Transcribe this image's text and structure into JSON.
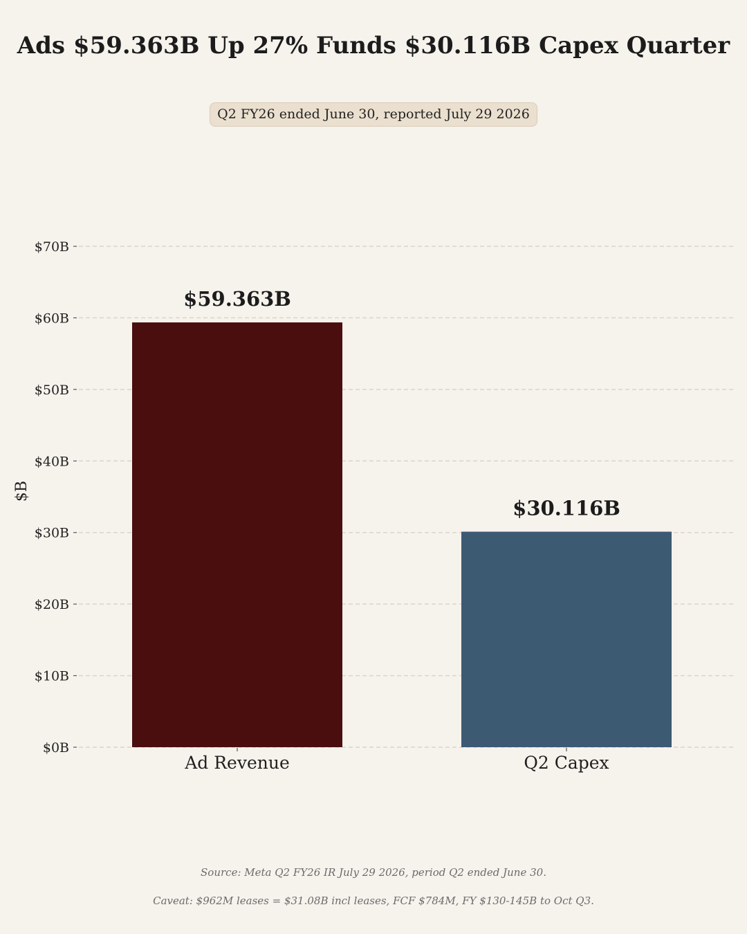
{
  "title": "Ads $59.363B Up 27% Funds $30.116B Capex Quarter",
  "subtitle": "Q2 FY26 ended June 30, reported July 29 2026",
  "footer": {
    "source": "Source: Meta Q2 FY26 IR July 29 2026, period Q2 ended June 30.",
    "caveat": "Caveat: $962M leases = $31.08B incl leases, FCF $784M, FY $130-145B to Oct Q3."
  },
  "chart_data": {
    "type": "bar",
    "categories": [
      "Ad Revenue",
      "Q2 Capex"
    ],
    "values": [
      59.363,
      30.116
    ],
    "value_labels": [
      "$59.363B",
      "$30.116B"
    ],
    "colors": [
      "#4a0e0f",
      "#3d5a73"
    ],
    "ylabel": "$B",
    "ylim": [
      0,
      70
    ],
    "yticks": [
      0,
      10,
      20,
      30,
      40,
      50,
      60,
      70
    ],
    "ytick_labels": [
      "$0B",
      "$10B",
      "$20B",
      "$30B",
      "$40B",
      "$50B",
      "$60B",
      "$70B"
    ],
    "grid": true
  }
}
